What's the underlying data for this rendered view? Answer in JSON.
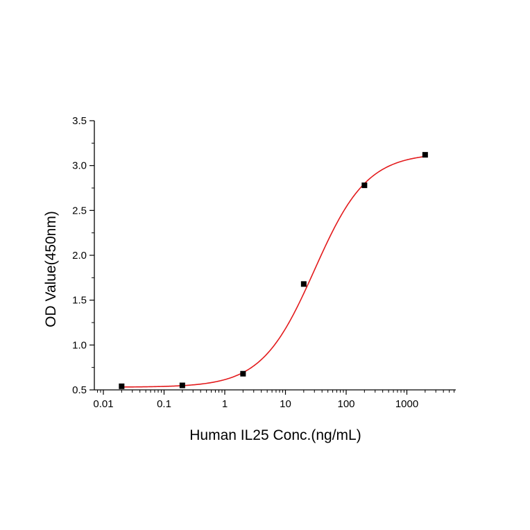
{
  "chart_data": {
    "type": "scatter",
    "title": "",
    "xlabel": "Human IL25 Conc.(ng/mL)",
    "ylabel": "OD Value(450nm)",
    "x_scale": "log",
    "xlim": [
      0.01,
      6000
    ],
    "ylim": [
      0.5,
      3.5
    ],
    "x_ticks": [
      "0.01",
      "0.1",
      "1",
      "10",
      "100",
      "1000"
    ],
    "y_ticks": [
      "0.5",
      "1.0",
      "1.5",
      "2.0",
      "2.5",
      "3.0",
      "3.5"
    ],
    "grid": false,
    "legend": "none",
    "points": {
      "x": [
        0.02,
        0.2,
        2,
        20,
        200,
        2000
      ],
      "y": [
        0.54,
        0.55,
        0.68,
        1.68,
        2.78,
        3.12
      ],
      "color": "#000000",
      "marker": "square"
    },
    "fit_curve": {
      "model": "4PL",
      "bottom": 0.53,
      "top": 3.14,
      "ec50": 30,
      "hill": 1.0,
      "color": "#e31a1c"
    }
  }
}
